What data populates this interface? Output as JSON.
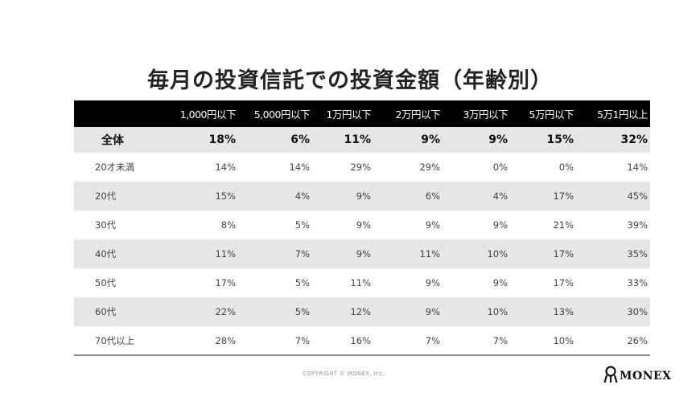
{
  "title": "毎月の投資信託での投資金額（年齢別）",
  "table": {
    "columns": [
      "1,000円以下",
      "5,000円以下",
      "1万円以下",
      "2万円以下",
      "3万円以下",
      "5万円以下",
      "5万1円以上"
    ],
    "total": {
      "label": "全体",
      "values": [
        "18%",
        "6%",
        "11%",
        "9%",
        "9%",
        "15%",
        "32%"
      ]
    },
    "rows": [
      {
        "label": "20才未満",
        "values": [
          "14%",
          "14%",
          "29%",
          "29%",
          "0%",
          "0%",
          "14%"
        ]
      },
      {
        "label": "20代",
        "values": [
          "15%",
          "4%",
          "9%",
          "6%",
          "4%",
          "17%",
          "45%"
        ]
      },
      {
        "label": "30代",
        "values": [
          "8%",
          "5%",
          "9%",
          "9%",
          "9%",
          "21%",
          "39%"
        ]
      },
      {
        "label": "40代",
        "values": [
          "11%",
          "7%",
          "9%",
          "11%",
          "10%",
          "17%",
          "35%"
        ]
      },
      {
        "label": "50代",
        "values": [
          "17%",
          "5%",
          "11%",
          "9%",
          "9%",
          "17%",
          "33%"
        ]
      },
      {
        "label": "60代",
        "values": [
          "22%",
          "5%",
          "12%",
          "9%",
          "10%",
          "13%",
          "30%"
        ]
      },
      {
        "label": "70代以上",
        "values": [
          "28%",
          "7%",
          "16%",
          "7%",
          "7%",
          "10%",
          "26%"
        ]
      }
    ]
  },
  "footer": {
    "copyright": "COPYRIGHT © MONEX, Inc.",
    "logo_text": "MONEX"
  }
}
